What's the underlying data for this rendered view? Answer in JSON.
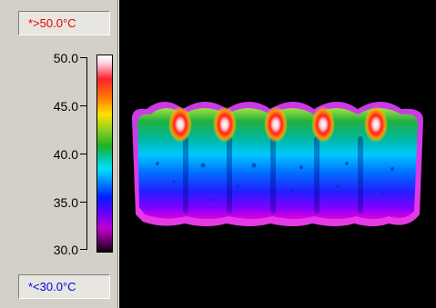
{
  "scale": {
    "max_label": "*>50.0°C",
    "min_label": "*<30.0°C",
    "ticks": [
      "50.0",
      "45.0",
      "40.0",
      "35.0",
      "30.0"
    ]
  },
  "colors": {
    "max_text": "#e80000",
    "min_text": "#0000e8",
    "background": "#000000",
    "panel": "#d4d0c8"
  },
  "thermal_image": {
    "subject": "thermal image of a five-cell battery pack",
    "hotspots": 5
  }
}
